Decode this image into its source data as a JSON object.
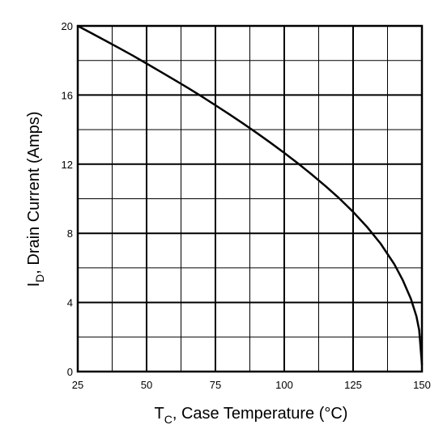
{
  "chart_data": {
    "type": "line",
    "xlabel_main": "T",
    "xlabel_sub": "C",
    "xlabel_rest": ", Case Temperature (°C)",
    "ylabel_main": "I",
    "ylabel_sub": "D",
    "ylabel_rest": ", Drain Current (Amps)",
    "xlim": [
      25,
      150
    ],
    "ylim": [
      0,
      20
    ],
    "x_ticks": [
      "25",
      "50",
      "75",
      "100",
      "125",
      "150"
    ],
    "y_ticks": [
      "0",
      "4",
      "8",
      "12",
      "16",
      "20"
    ],
    "grid": true,
    "series": [
      {
        "x": [
          25,
          30,
          35,
          40,
          45,
          50,
          55,
          60,
          65,
          70,
          75,
          80,
          85,
          90,
          95,
          100,
          105,
          110,
          115,
          120,
          125,
          130,
          135,
          140,
          143,
          146,
          148,
          149,
          150
        ],
        "y": [
          20.0,
          19.58,
          19.15,
          18.72,
          18.28,
          17.82,
          17.36,
          16.89,
          16.41,
          15.92,
          15.41,
          14.89,
          14.36,
          13.81,
          13.24,
          12.65,
          12.04,
          11.4,
          10.73,
          10.02,
          9.24,
          8.38,
          7.4,
          6.2,
          5.3,
          4.2,
          3.2,
          2.4,
          0.4
        ]
      }
    ]
  }
}
